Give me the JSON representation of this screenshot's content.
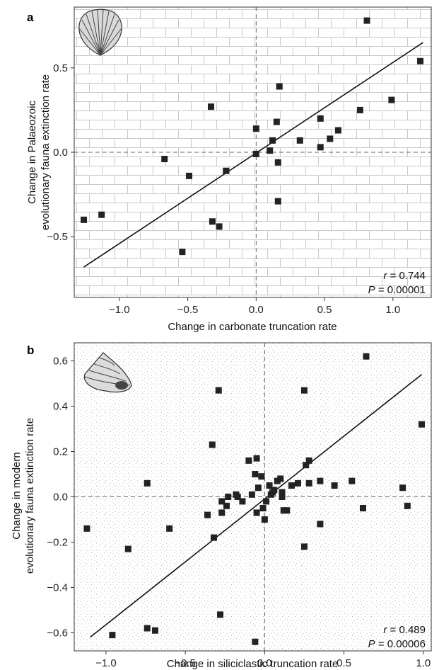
{
  "chart_data": [
    {
      "type": "scatter",
      "panel": "a",
      "xlabel": "Change in carbonate truncation rate",
      "ylabel": [
        "Change in Palaeozoic",
        "evolutionary fauna extinction rate"
      ],
      "xlim": [
        -1.33,
        1.28
      ],
      "ylim": [
        -0.86,
        0.86
      ],
      "xticks": [
        -1.0,
        -0.5,
        0.0,
        0.5,
        1.0
      ],
      "xtick_labels": [
        "−1.0",
        "−0.5",
        "0.0",
        "0.5",
        "1.0"
      ],
      "yticks": [
        -0.5,
        0.0,
        0.5
      ],
      "ytick_labels": [
        "−0.5",
        "0.0",
        "0.5"
      ],
      "background": "brick-hatch",
      "icon": "brachiopod-shell-icon",
      "regression": {
        "x": [
          -1.26,
          1.22
        ],
        "y": [
          -0.68,
          0.65
        ]
      },
      "stats": {
        "r_symbol": "r",
        "r_value": "= 0.744",
        "p_symbol": "P",
        "p_value": "= 0.00001"
      },
      "points": {
        "x": [
          -1.26,
          -1.13,
          -0.67,
          -0.54,
          -0.49,
          -0.33,
          -0.32,
          -0.27,
          -0.22,
          0.0,
          0.0,
          0.1,
          0.12,
          0.15,
          0.16,
          0.16,
          0.17,
          0.32,
          0.47,
          0.47,
          0.54,
          0.6,
          0.76,
          0.81,
          0.99,
          1.2
        ],
        "y": [
          -0.4,
          -0.37,
          -0.04,
          -0.59,
          -0.14,
          0.27,
          -0.41,
          -0.44,
          -0.11,
          0.14,
          -0.01,
          0.01,
          0.07,
          0.18,
          -0.29,
          -0.06,
          0.39,
          0.07,
          0.2,
          0.03,
          0.08,
          0.13,
          0.25,
          0.78,
          0.31,
          0.54
        ]
      }
    },
    {
      "type": "scatter",
      "panel": "b",
      "xlabel": "Change in siliciclastic truncation rate",
      "ylabel": [
        "Change in modern",
        "evolutionary fauna extinction rate"
      ],
      "xlim": [
        -1.2,
        1.05
      ],
      "ylim": [
        -0.68,
        0.68
      ],
      "xticks": [
        -1.0,
        -0.5,
        0.0,
        0.5,
        1.0
      ],
      "xtick_labels": [
        "−1.0",
        "−0.5",
        "0.0",
        "0.5",
        "1.0"
      ],
      "yticks": [
        -0.6,
        -0.4,
        -0.2,
        0.0,
        0.2,
        0.4,
        0.6
      ],
      "ytick_labels": [
        "−0.6",
        "−0.4",
        "−0.2",
        "0.0",
        "0.2",
        "0.4",
        "0.6"
      ],
      "background": "stipple",
      "icon": "gastropod-shell-icon",
      "regression": {
        "x": [
          -1.1,
          0.99
        ],
        "y": [
          -0.62,
          0.54
        ]
      },
      "stats": {
        "r_symbol": "r",
        "r_value": "= 0.489",
        "p_symbol": "P",
        "p_value": "= 0.00006"
      },
      "points": {
        "x": [
          -1.12,
          -0.96,
          -0.86,
          -0.74,
          -0.74,
          -0.69,
          -0.6,
          -0.36,
          -0.33,
          -0.32,
          -0.29,
          -0.28,
          -0.27,
          -0.27,
          -0.24,
          -0.23,
          -0.18,
          -0.17,
          -0.14,
          -0.1,
          -0.08,
          -0.06,
          -0.06,
          -0.05,
          -0.05,
          -0.04,
          -0.02,
          -0.01,
          0.0,
          0.01,
          0.03,
          0.04,
          0.05,
          0.06,
          0.08,
          0.1,
          0.11,
          0.11,
          0.12,
          0.14,
          0.17,
          0.21,
          0.25,
          0.25,
          0.26,
          0.28,
          0.28,
          0.35,
          0.35,
          0.44,
          0.55,
          0.62,
          0.64,
          0.87,
          0.9,
          0.99
        ],
        "y": [
          -0.14,
          -0.61,
          -0.23,
          0.06,
          -0.58,
          -0.59,
          -0.14,
          -0.08,
          0.23,
          -0.18,
          0.47,
          -0.52,
          -0.02,
          -0.07,
          -0.04,
          0.0,
          0.01,
          0.0,
          -0.02,
          0.16,
          0.01,
          0.1,
          -0.64,
          -0.07,
          0.17,
          0.04,
          0.09,
          -0.05,
          -0.1,
          -0.02,
          0.05,
          0.01,
          0.02,
          0.03,
          0.07,
          0.08,
          0.02,
          0.0,
          -0.06,
          -0.06,
          0.05,
          0.06,
          0.47,
          -0.22,
          0.14,
          0.06,
          0.16,
          -0.12,
          0.07,
          0.05,
          0.07,
          -0.05,
          0.62,
          0.04,
          -0.04,
          0.32
        ]
      }
    }
  ]
}
